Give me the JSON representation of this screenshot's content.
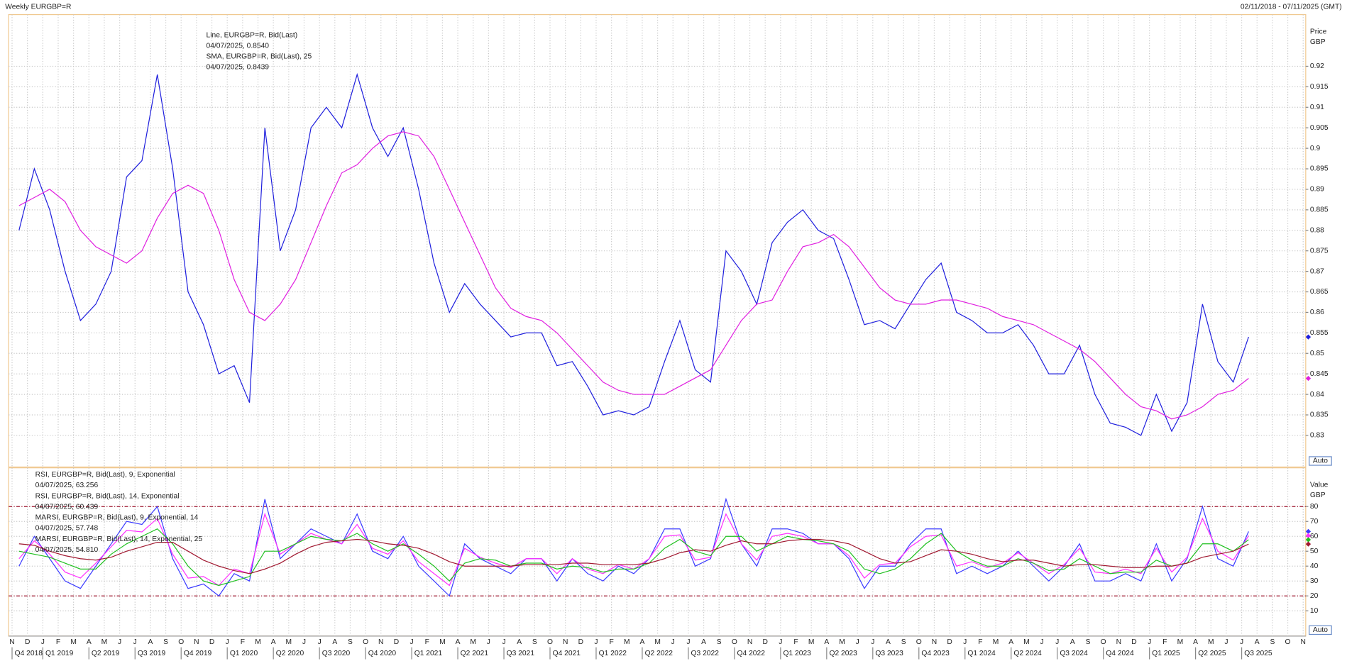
{
  "header": {
    "title": "Weekly EURGBP=R",
    "range": "02/11/2018 - 07/11/2025 (GMT)"
  },
  "chart_data": [
    {
      "type": "line",
      "axis_title": "Price",
      "axis_unit": "GBP",
      "scale_button": "Auto",
      "ylim": [
        0.8223,
        0.9326
      ],
      "yticks": [
        0.83,
        0.835,
        0.84,
        0.845,
        0.85,
        0.855,
        0.86,
        0.865,
        0.87,
        0.875,
        0.88,
        0.885,
        0.89,
        0.895,
        0.9,
        0.905,
        0.91,
        0.915,
        0.92
      ],
      "grid": true,
      "series": [
        {
          "name": "Line, EURGBP=R, Bid(Last)",
          "last_label": "04/07/2025, 0.8540",
          "color": "#1f1fdd",
          "values": [
            0.88,
            0.895,
            0.885,
            0.87,
            0.858,
            0.862,
            0.87,
            0.893,
            0.897,
            0.918,
            0.895,
            0.865,
            0.857,
            0.845,
            0.847,
            0.838,
            0.905,
            0.875,
            0.885,
            0.905,
            0.91,
            0.905,
            0.918,
            0.905,
            0.898,
            0.905,
            0.89,
            0.872,
            0.86,
            0.867,
            0.862,
            0.858,
            0.854,
            0.855,
            0.855,
            0.847,
            0.848,
            0.842,
            0.835,
            0.836,
            0.835,
            0.837,
            0.848,
            0.858,
            0.846,
            0.843,
            0.875,
            0.87,
            0.862,
            0.877,
            0.882,
            0.885,
            0.88,
            0.878,
            0.868,
            0.857,
            0.858,
            0.856,
            0.862,
            0.868,
            0.872,
            0.86,
            0.858,
            0.855,
            0.855,
            0.857,
            0.852,
            0.845,
            0.845,
            0.852,
            0.84,
            0.833,
            0.832,
            0.83,
            0.84,
            0.831,
            0.838,
            0.862,
            0.848,
            0.843,
            0.854,
            null,
            null,
            null,
            null
          ]
        },
        {
          "name": "SMA, EURGBP=R, Bid(Last),  25",
          "last_label": "04/07/2025, 0.8439",
          "color": "#e020e0",
          "values": [
            0.886,
            0.888,
            0.89,
            0.887,
            0.88,
            0.876,
            0.874,
            0.872,
            0.875,
            0.883,
            0.889,
            0.891,
            0.889,
            0.88,
            0.868,
            0.86,
            0.858,
            0.862,
            0.868,
            0.877,
            0.886,
            0.894,
            0.896,
            0.9,
            0.903,
            0.904,
            0.903,
            0.898,
            0.89,
            0.882,
            0.874,
            0.866,
            0.861,
            0.859,
            0.858,
            0.855,
            0.851,
            0.847,
            0.843,
            0.841,
            0.84,
            0.84,
            0.84,
            0.842,
            0.844,
            0.846,
            0.852,
            0.858,
            0.862,
            0.863,
            0.87,
            0.876,
            0.877,
            0.879,
            0.876,
            0.871,
            0.866,
            0.863,
            0.862,
            0.862,
            0.863,
            0.863,
            0.862,
            0.861,
            0.859,
            0.858,
            0.857,
            0.855,
            0.853,
            0.851,
            0.848,
            0.844,
            0.84,
            0.837,
            0.836,
            0.834,
            0.835,
            0.837,
            0.84,
            0.841,
            0.8439,
            null,
            null,
            null,
            null
          ]
        }
      ]
    },
    {
      "type": "line",
      "axis_title": "Value",
      "axis_unit": "GBP",
      "scale_button": "Auto",
      "ylim": [
        -7,
        106
      ],
      "yticks": [
        10,
        20,
        30,
        40,
        50,
        60,
        70,
        80
      ],
      "ref_lines": [
        20,
        80
      ],
      "grid": true,
      "categories": [
        "N",
        "D",
        "J",
        "F",
        "M",
        "A",
        "M",
        "J",
        "J",
        "A",
        "S",
        "O",
        "N",
        "D",
        "J",
        "F",
        "M",
        "A",
        "M",
        "J",
        "J",
        "A",
        "S",
        "O",
        "N",
        "D",
        "J",
        "F",
        "M",
        "A",
        "M",
        "J",
        "J",
        "A",
        "S",
        "O",
        "N",
        "D",
        "J",
        "F",
        "M",
        "A",
        "M",
        "J",
        "J",
        "A",
        "S",
        "O",
        "N",
        "D",
        "J",
        "F",
        "M",
        "A",
        "M",
        "J",
        "J",
        "A",
        "S",
        "O",
        "N",
        "D",
        "J",
        "F",
        "M",
        "A",
        "M",
        "J",
        "J",
        "A",
        "S",
        "O",
        "N",
        "D",
        "J",
        "F",
        "M",
        "A",
        "M",
        "J",
        "J",
        "A",
        "S",
        "O",
        "N"
      ],
      "quarter_labels": [
        "Q4 2018",
        null,
        "Q1 2019",
        null,
        null,
        "Q2 2019",
        null,
        null,
        "Q3 2019",
        null,
        null,
        "Q4 2019",
        null,
        null,
        "Q1 2020",
        null,
        null,
        "Q2 2020",
        null,
        null,
        "Q3 2020",
        null,
        null,
        "Q4 2020",
        null,
        null,
        "Q1 2021",
        null,
        null,
        "Q2 2021",
        null,
        null,
        "Q3 2021",
        null,
        null,
        "Q4 2021",
        null,
        null,
        "Q1 2022",
        null,
        null,
        "Q2 2022",
        null,
        null,
        "Q3 2022",
        null,
        null,
        "Q4 2022",
        null,
        null,
        "Q1 2023",
        null,
        null,
        "Q2 2023",
        null,
        null,
        "Q3 2023",
        null,
        null,
        "Q4 2023",
        null,
        null,
        "Q1 2024",
        null,
        null,
        "Q2 2024",
        null,
        null,
        "Q3 2024",
        null,
        null,
        "Q4 2024",
        null,
        null,
        "Q1 2025",
        null,
        null,
        "Q2 2025",
        null,
        null,
        "Q3 2025",
        null,
        null,
        null,
        null
      ],
      "series": [
        {
          "name": "RSI, EURGBP=R, Bid(Last),  9, Exponential",
          "last_label": "04/07/2025, 63.256",
          "color": "#3a3aff",
          "values": [
            40,
            60,
            45,
            30,
            25,
            40,
            55,
            70,
            68,
            80,
            45,
            25,
            28,
            20,
            35,
            30,
            85,
            45,
            55,
            65,
            60,
            55,
            75,
            50,
            45,
            60,
            40,
            30,
            20,
            55,
            45,
            40,
            35,
            45,
            45,
            30,
            45,
            35,
            30,
            40,
            35,
            45,
            65,
            65,
            40,
            45,
            85,
            55,
            40,
            65,
            65,
            62,
            55,
            55,
            45,
            25,
            40,
            40,
            55,
            65,
            65,
            35,
            40,
            35,
            40,
            50,
            40,
            30,
            40,
            55,
            30,
            30,
            35,
            30,
            55,
            30,
            45,
            80,
            45,
            40,
            63.256,
            null,
            null,
            null,
            null
          ]
        },
        {
          "name": "RSI, EURGBP=R, Bid(Last),  14, Exponential",
          "last_label": "04/07/2025, 60.439",
          "color": "#ff30ff",
          "values": [
            45,
            57,
            48,
            36,
            32,
            42,
            53,
            64,
            63,
            72,
            48,
            32,
            33,
            27,
            38,
            35,
            75,
            48,
            55,
            62,
            58,
            55,
            68,
            52,
            48,
            57,
            43,
            35,
            27,
            52,
            46,
            42,
            39,
            45,
            45,
            35,
            45,
            38,
            35,
            41,
            38,
            45,
            60,
            61,
            44,
            46,
            75,
            55,
            44,
            60,
            62,
            60,
            55,
            55,
            47,
            32,
            41,
            42,
            53,
            60,
            61,
            40,
            43,
            39,
            42,
            49,
            42,
            35,
            41,
            52,
            36,
            35,
            38,
            35,
            52,
            36,
            46,
            72,
            50,
            44,
            60.439,
            null,
            null,
            null,
            null
          ]
        },
        {
          "name": "MARSI, EURGBP=R, Bid(Last),  9, Exponential, 14",
          "last_label": "04/07/2025, 57.748",
          "color": "#20c020",
          "values": [
            50,
            48,
            46,
            42,
            38,
            38,
            48,
            55,
            60,
            65,
            55,
            40,
            30,
            27,
            30,
            33,
            50,
            50,
            55,
            60,
            58,
            57,
            62,
            55,
            50,
            55,
            48,
            40,
            30,
            42,
            45,
            44,
            40,
            42,
            42,
            38,
            40,
            39,
            36,
            38,
            38,
            42,
            52,
            58,
            50,
            47,
            60,
            60,
            50,
            55,
            60,
            58,
            57,
            55,
            50,
            38,
            35,
            38,
            45,
            55,
            62,
            50,
            44,
            40,
            40,
            45,
            42,
            37,
            38,
            45,
            40,
            35,
            36,
            36,
            44,
            40,
            42,
            55,
            55,
            50,
            57.748,
            null,
            null,
            null,
            null
          ]
        },
        {
          "name": "MARSI, EURGBP=R, Bid(Last),  14, Exponential, 25",
          "last_label": "04/07/2025, 54.810",
          "color": "#a01830",
          "values": [
            55,
            54,
            50,
            47,
            45,
            44,
            46,
            50,
            53,
            56,
            56,
            50,
            44,
            40,
            37,
            35,
            38,
            42,
            48,
            53,
            56,
            57,
            58,
            57,
            55,
            54,
            52,
            48,
            43,
            40,
            40,
            40,
            40,
            41,
            41,
            41,
            42,
            42,
            41,
            41,
            41,
            42,
            45,
            49,
            51,
            50,
            54,
            57,
            55,
            55,
            57,
            58,
            58,
            57,
            55,
            50,
            45,
            42,
            43,
            47,
            51,
            50,
            48,
            45,
            43,
            44,
            44,
            42,
            40,
            41,
            41,
            40,
            39,
            39,
            40,
            40,
            42,
            46,
            48,
            50,
            54.81,
            null,
            null,
            null,
            null
          ]
        }
      ]
    }
  ]
}
